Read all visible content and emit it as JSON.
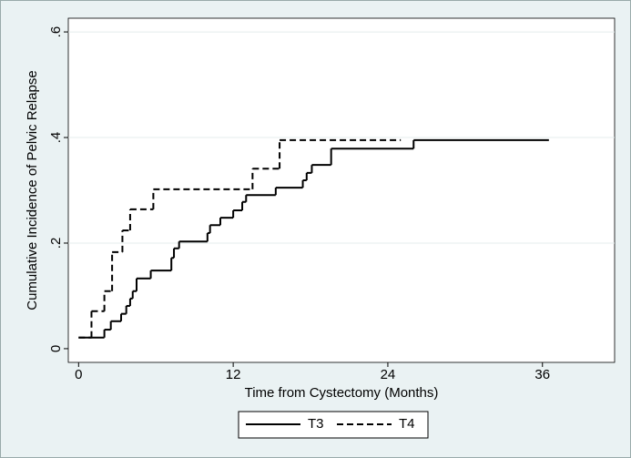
{
  "chart_data": {
    "type": "step",
    "x_label": "Time from Cystectomy (Months)",
    "y_label": "Cumulative Incidence of Pelvic Relapse",
    "xlim": [
      -0.8,
      41.6
    ],
    "ylim": [
      -0.026,
      0.626
    ],
    "xticks": [
      0,
      12,
      24,
      36
    ],
    "yticks": [
      0,
      {
        "value": 0.2,
        "label": ".2"
      },
      {
        "value": 0.4,
        "label": ".4"
      },
      {
        "value": 0.6,
        "label": ".6"
      }
    ],
    "grid": true,
    "legend": "bottom",
    "series": [
      {
        "name": "T3",
        "color": "#000000",
        "dash": "solid",
        "x": [
          0,
          2,
          2.5,
          3.3,
          3.7,
          4,
          4.2,
          4.5,
          5.6,
          7.2,
          7.4,
          7.8,
          10,
          10.2,
          11,
          12,
          12.7,
          13,
          15.3,
          17.4,
          17.7,
          18.1,
          19.6,
          26,
          36.5
        ],
        "values": [
          0.021,
          0.036,
          0.052,
          0.066,
          0.081,
          0.095,
          0.109,
          0.133,
          0.148,
          0.172,
          0.19,
          0.203,
          0.219,
          0.234,
          0.248,
          0.262,
          0.278,
          0.291,
          0.305,
          0.319,
          0.333,
          0.348,
          0.379,
          0.395,
          0.395
        ]
      },
      {
        "name": "T4",
        "color": "#000000",
        "dash": "dashed",
        "x": [
          0,
          1,
          2,
          2.6,
          3.4,
          4,
          5.8,
          13.5,
          15.6,
          25
        ],
        "values": [
          0.021,
          0.071,
          0.109,
          0.183,
          0.224,
          0.264,
          0.302,
          0.341,
          0.395,
          0.395
        ]
      }
    ]
  }
}
